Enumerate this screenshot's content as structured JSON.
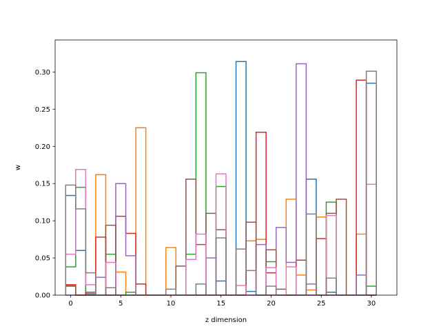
{
  "chart_data": {
    "type": "step-histogram",
    "title": "",
    "xlabel": "z dimension",
    "ylabel": "w",
    "xlim": [
      -1.55,
      32.55
    ],
    "ylim": [
      0,
      0.343
    ],
    "xticks": [
      0,
      5,
      10,
      15,
      20,
      25,
      30
    ],
    "yticks": [
      0.0,
      0.05,
      0.1,
      0.15,
      0.2,
      0.25,
      0.3
    ],
    "ytick_labels": [
      "0.00",
      "0.05",
      "0.10",
      "0.15",
      "0.20",
      "0.25",
      "0.30"
    ],
    "bin_start": -0.5,
    "bin_width": 1,
    "series": [
      {
        "color": "#1f77b4",
        "values": [
          0.134,
          0.06,
          0.002,
          0,
          0,
          0,
          0,
          0,
          0,
          0,
          0,
          0,
          0,
          0,
          0,
          0.019,
          0,
          0.314,
          0.005,
          0,
          0,
          0,
          0,
          0,
          0.156,
          0,
          0.004,
          0,
          0,
          0,
          0.285
        ]
      },
      {
        "color": "#ff7f0e",
        "values": [
          0.013,
          0,
          0,
          0.162,
          0,
          0.031,
          0,
          0.225,
          0,
          0,
          0.064,
          0,
          0,
          0,
          0,
          0,
          0,
          0,
          0.073,
          0.075,
          0,
          0,
          0.129,
          0.027,
          0.007,
          0.105,
          0,
          0,
          0,
          0.082,
          0
        ]
      },
      {
        "color": "#2ca02c",
        "values": [
          0.038,
          0.145,
          0,
          0,
          0.055,
          0,
          0.004,
          0,
          0,
          0,
          0,
          0,
          0.055,
          0.299,
          0,
          0.146,
          0,
          0,
          0,
          0,
          0.045,
          0,
          0,
          0,
          0,
          0,
          0.125,
          0,
          0,
          0,
          0.012
        ]
      },
      {
        "color": "#d62728",
        "values": [
          0.014,
          0,
          0.004,
          0.078,
          0,
          0.106,
          0.083,
          0.015,
          0,
          0,
          0,
          0,
          0,
          0,
          0,
          0,
          0,
          0,
          0,
          0.219,
          0.03,
          0,
          0,
          0.047,
          0,
          0.076,
          0,
          0,
          0,
          0.289,
          0
        ]
      },
      {
        "color": "#9467bd",
        "values": [
          0,
          0,
          0,
          0.024,
          0,
          0.15,
          0.053,
          0,
          0,
          0,
          0,
          0,
          0,
          0,
          0.05,
          0,
          0,
          0,
          0,
          0.068,
          0,
          0.091,
          0.044,
          0.311,
          0.015,
          0,
          0,
          0,
          0,
          0.027,
          0
        ]
      },
      {
        "color": "#8c564b",
        "values": [
          0.012,
          0,
          0,
          0,
          0.094,
          0,
          0,
          0,
          0,
          0,
          0,
          0.039,
          0.156,
          0.068,
          0.11,
          0.088,
          0,
          0,
          0.098,
          0,
          0.061,
          0.008,
          0,
          0,
          0,
          0,
          0.11,
          0.129,
          0,
          0,
          0
        ]
      },
      {
        "color": "#e377c2",
        "values": [
          0.055,
          0.169,
          0.014,
          0,
          0.044,
          0,
          0,
          0,
          0,
          0,
          0,
          0,
          0.048,
          0.082,
          0,
          0.163,
          0,
          0.013,
          0,
          0,
          0.037,
          0,
          0.038,
          0,
          0,
          0,
          0.107,
          0,
          0,
          0,
          0.149
        ]
      },
      {
        "color": "#7f7f7f",
        "values": [
          0.148,
          0.116,
          0.03,
          0,
          0.01,
          0,
          0,
          0,
          0,
          0,
          0.008,
          0,
          0,
          0.015,
          0,
          0.077,
          0,
          0.062,
          0.033,
          0,
          0.012,
          0,
          0,
          0,
          0.109,
          0,
          0.023,
          0,
          0,
          0,
          0.301
        ]
      }
    ]
  }
}
